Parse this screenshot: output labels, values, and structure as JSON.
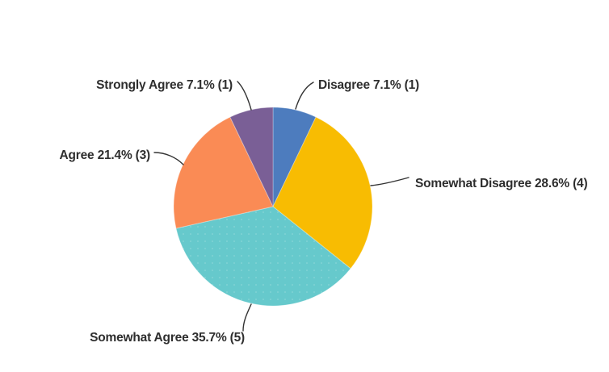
{
  "chart_data": {
    "type": "pie",
    "title": "",
    "categories": [
      "Disagree",
      "Somewhat Disagree",
      "Somewhat Agree",
      "Agree",
      "Strongly Agree"
    ],
    "values": [
      7.1,
      28.6,
      35.7,
      21.4,
      7.1
    ],
    "counts": [
      1,
      4,
      5,
      3,
      1
    ],
    "slices": [
      {
        "name": "Disagree",
        "percent": 7.1,
        "count": 1,
        "label": "Disagree 7.1% (1)",
        "color": "#4D7CBE"
      },
      {
        "name": "Somewhat Disagree",
        "percent": 28.6,
        "count": 4,
        "label": "Somewhat Disagree 28.6% (4)",
        "color": "#F8BC02"
      },
      {
        "name": "Somewhat Agree",
        "percent": 35.7,
        "count": 5,
        "label": "Somewhat Agree 35.7% (5)",
        "color": "#66C9CC"
      },
      {
        "name": "Agree",
        "percent": 21.4,
        "count": 3,
        "label": "Agree 21.4% (3)",
        "color": "#FA8B55"
      },
      {
        "name": "Strongly Agree",
        "percent": 7.1,
        "count": 1,
        "label": "Strongly Agree 7.1% (1)",
        "color": "#7A5F96"
      }
    ],
    "start_angle_deg": 0,
    "direction": "clockwise",
    "label_style": "outside-leader-lines",
    "label_color": "#2E2E2E",
    "background": "#FFFFFF",
    "legend_position": "none"
  }
}
